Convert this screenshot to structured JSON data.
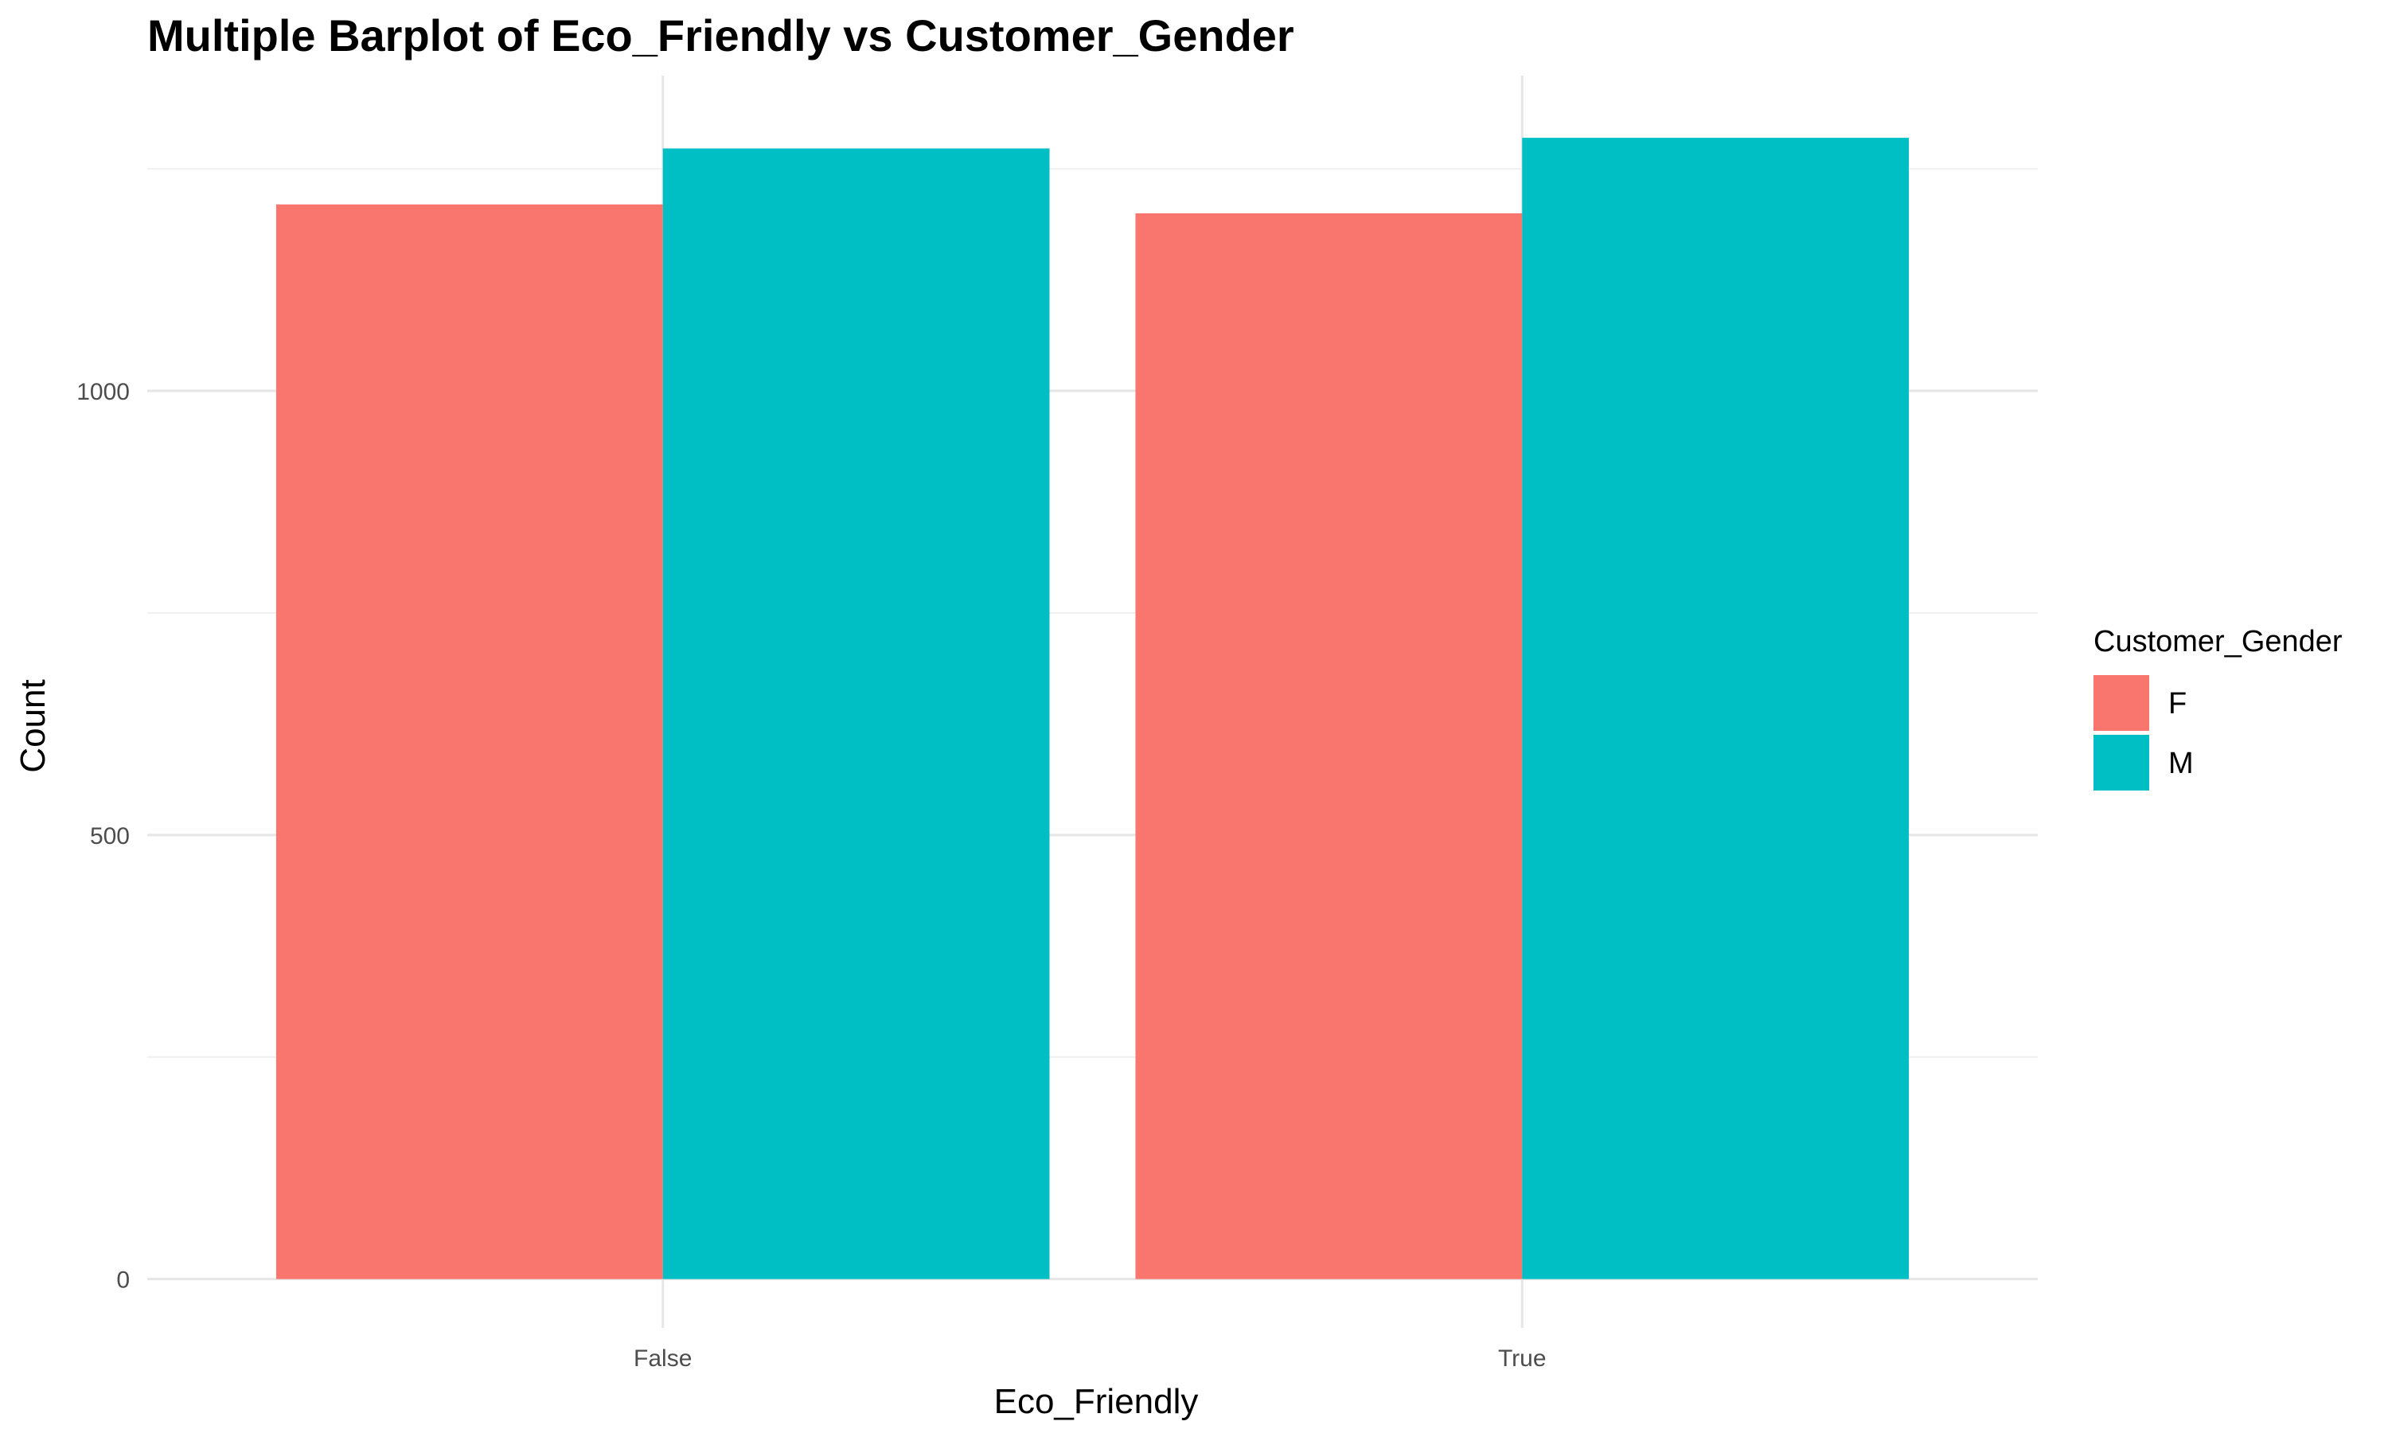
{
  "chart_data": {
    "type": "bar",
    "title": "Multiple Barplot of Eco_Friendly vs Customer_Gender",
    "xlabel": "Eco_Friendly",
    "ylabel": "Count",
    "categories": [
      "False",
      "True"
    ],
    "series": [
      {
        "name": "F",
        "color": "#F8766D",
        "values": [
          1210,
          1200
        ]
      },
      {
        "name": "M",
        "color": "#00BFC4",
        "values": [
          1273,
          1285
        ]
      }
    ],
    "ylim": [
      -55,
      1355
    ],
    "yticks": [
      0,
      500,
      1000
    ],
    "yticks_minor": [
      250,
      750,
      1250
    ],
    "grid": true,
    "legend": {
      "title": "Customer_Gender",
      "placement": "right"
    }
  }
}
